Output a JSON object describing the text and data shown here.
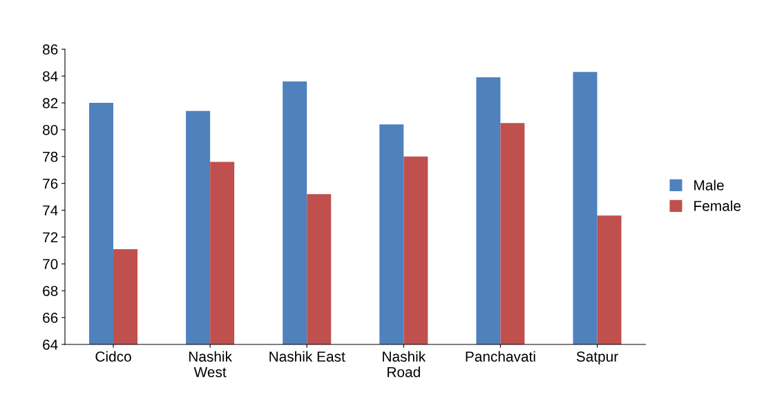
{
  "chart_data": {
    "type": "bar",
    "categories": [
      "Cidco",
      "Nashik\nWest",
      "Nashik East",
      "Nashik\nRoad",
      "Panchavati",
      "Satpur"
    ],
    "series": [
      {
        "name": "Male",
        "color": "#4f81bd",
        "values": [
          82.0,
          81.4,
          83.6,
          80.4,
          83.9,
          84.3
        ]
      },
      {
        "name": "Female",
        "color": "#c0504d",
        "values": [
          71.1,
          77.6,
          75.2,
          78.0,
          80.5,
          73.6
        ]
      }
    ],
    "ylim": [
      64,
      86
    ],
    "yticks": [
      64,
      66,
      68,
      70,
      72,
      74,
      76,
      78,
      80,
      82,
      84,
      86
    ],
    "grid": false,
    "legend": "right"
  }
}
